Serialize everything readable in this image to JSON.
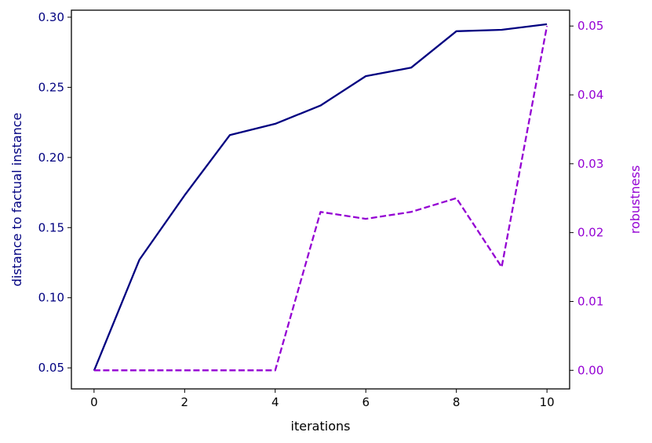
{
  "chart_data": {
    "type": "line",
    "xlabel": "iterations",
    "y1label": "distance to factual instance",
    "y2label": "robustness",
    "xlim": [
      -0.5,
      10.5
    ],
    "y1lim": [
      0.035,
      0.305
    ],
    "y2lim": [
      -0.0027,
      0.0523
    ],
    "xticks": [
      0,
      2,
      4,
      6,
      8,
      10
    ],
    "xtick_labels": [
      "0",
      "2",
      "4",
      "6",
      "8",
      "10"
    ],
    "y1ticks": [
      0.05,
      0.1,
      0.15,
      0.2,
      0.25,
      0.3
    ],
    "y1tick_labels": [
      "0.05",
      "0.10",
      "0.15",
      "0.20",
      "0.25",
      "0.30"
    ],
    "y2ticks": [
      0.0,
      0.01,
      0.02,
      0.03,
      0.04,
      0.05
    ],
    "y2tick_labels": [
      "0.00",
      "0.01",
      "0.02",
      "0.03",
      "0.04",
      "0.05"
    ],
    "grid": false,
    "x": [
      0,
      1,
      2,
      3,
      4,
      5,
      6,
      7,
      8,
      9,
      10
    ],
    "series": [
      {
        "axis": "left",
        "style": "solid",
        "color": "#000080",
        "values": [
          0.048,
          0.127,
          0.173,
          0.216,
          0.224,
          0.237,
          0.258,
          0.264,
          0.29,
          0.291,
          0.295
        ]
      },
      {
        "axis": "right",
        "style": "dashed",
        "color": "#9400D3",
        "values": [
          0.0,
          0.0,
          0.0,
          0.0,
          0.0,
          0.023,
          0.022,
          0.023,
          0.025,
          0.015,
          0.05
        ]
      }
    ]
  }
}
